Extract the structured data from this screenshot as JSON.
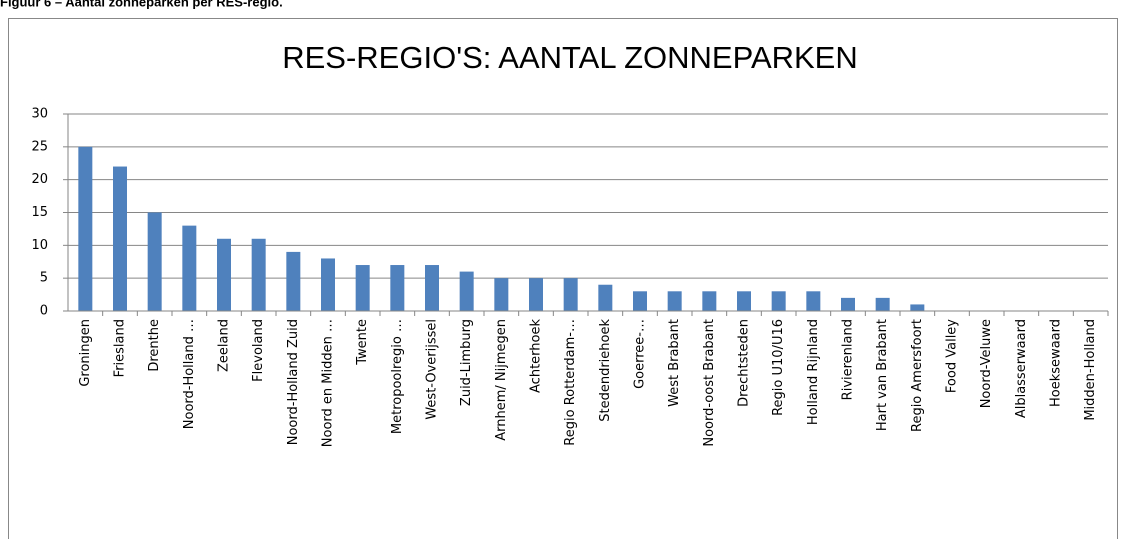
{
  "caption": "Figuur 6 – Aantal zonneparken per RES-regio.",
  "chart_data": {
    "type": "bar",
    "title": "RES-REGIO'S: AANTAL ZONNEPARKEN",
    "categories": [
      "Groningen",
      "Friesland",
      "Drenthe",
      "Noord-Holland …",
      "Zeeland",
      "Flevoland",
      "Noord-Holland Zuid",
      "Noord en Midden …",
      "Twente",
      "Metropoolregio …",
      "West-Overijssel",
      "Zuid-Limburg",
      "Arnhem/ Nijmegen",
      "Achterhoek",
      "Regio Rotterdam-…",
      "Stedendriehoek",
      "Goerree-…",
      "West Brabant",
      "Noord-oost Brabant",
      "Drechtsteden",
      "Regio U10/U16",
      "Holland Rijnland",
      "Rivierenland",
      "Hart van Brabant",
      "Regio Amersfoort",
      "Food Valley",
      "Noord-Veluwe",
      "Alblasserwaard",
      "Hoeksewaard",
      "Midden-Holland"
    ],
    "values": [
      25,
      22,
      15,
      13,
      11,
      11,
      9,
      8,
      7,
      7,
      7,
      6,
      5,
      5,
      5,
      4,
      3,
      3,
      3,
      3,
      3,
      3,
      2,
      2,
      1,
      0,
      0,
      0,
      0,
      0
    ],
    "color": "#4f81bd",
    "ylim": [
      0,
      30
    ],
    "yticks": [
      0,
      5,
      10,
      15,
      20,
      25,
      30
    ],
    "grid": true
  }
}
